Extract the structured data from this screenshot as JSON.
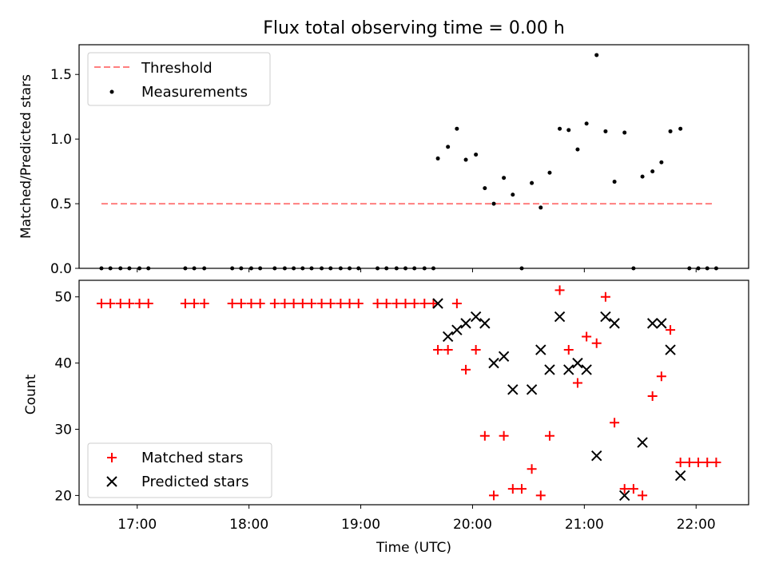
{
  "chart_data": [
    {
      "type": "scatter",
      "title": "Flux total observing time = 0.00 h",
      "xlabel": "",
      "ylabel": "Matched/Predicted stars",
      "x_unit": "time (h UTC)",
      "xlim": [
        16.48,
        22.47
      ],
      "ylim": [
        0.0,
        1.73
      ],
      "yticks": [
        0.0,
        0.5,
        1.0,
        1.5
      ],
      "ytick_labels": [
        "0.0",
        "0.5",
        "1.0",
        "1.5"
      ],
      "grid": false,
      "legend_placement": "upper-left",
      "threshold": {
        "name": "Threshold",
        "value": 0.5,
        "x_range": [
          16.68,
          22.15
        ],
        "color": "#ff7f7f"
      },
      "series": [
        {
          "name": "Measurements",
          "color": "#000000",
          "marker": "dot",
          "points": [
            [
              16.68,
              0
            ],
            [
              16.76,
              0
            ],
            [
              16.85,
              0
            ],
            [
              16.93,
              0
            ],
            [
              17.02,
              0
            ],
            [
              17.1,
              0
            ],
            [
              17.43,
              0
            ],
            [
              17.51,
              0
            ],
            [
              17.6,
              0
            ],
            [
              17.85,
              0
            ],
            [
              17.93,
              0
            ],
            [
              18.02,
              0
            ],
            [
              18.1,
              0
            ],
            [
              18.23,
              0
            ],
            [
              18.32,
              0
            ],
            [
              18.4,
              0
            ],
            [
              18.48,
              0
            ],
            [
              18.56,
              0
            ],
            [
              18.65,
              0
            ],
            [
              18.73,
              0
            ],
            [
              18.82,
              0
            ],
            [
              18.9,
              0
            ],
            [
              18.98,
              0
            ],
            [
              19.15,
              0
            ],
            [
              19.23,
              0
            ],
            [
              19.32,
              0
            ],
            [
              19.4,
              0
            ],
            [
              19.48,
              0
            ],
            [
              19.57,
              0
            ],
            [
              19.65,
              0
            ],
            [
              19.69,
              0.85
            ],
            [
              19.78,
              0.94
            ],
            [
              19.86,
              1.08
            ],
            [
              19.94,
              0.84
            ],
            [
              20.03,
              0.88
            ],
            [
              20.11,
              0.62
            ],
            [
              20.19,
              0.5
            ],
            [
              20.28,
              0.7
            ],
            [
              20.36,
              0.57
            ],
            [
              20.44,
              0.0
            ],
            [
              20.53,
              0.66
            ],
            [
              20.61,
              0.47
            ],
            [
              20.69,
              0.74
            ],
            [
              20.78,
              1.08
            ],
            [
              20.86,
              1.07
            ],
            [
              20.94,
              0.92
            ],
            [
              21.02,
              1.12
            ],
            [
              21.11,
              1.65
            ],
            [
              21.19,
              1.06
            ],
            [
              21.27,
              0.67
            ],
            [
              21.36,
              1.05
            ],
            [
              21.44,
              0.0
            ],
            [
              21.52,
              0.71
            ],
            [
              21.61,
              0.75
            ],
            [
              21.69,
              0.82
            ],
            [
              21.77,
              1.06
            ],
            [
              21.86,
              1.08
            ],
            [
              21.94,
              0.0
            ],
            [
              22.02,
              0.0
            ],
            [
              22.1,
              0.0
            ],
            [
              22.18,
              0.0
            ]
          ]
        }
      ]
    },
    {
      "type": "scatter",
      "title": "",
      "xlabel": "Time (UTC)",
      "ylabel": "Count",
      "x_unit": "time (h UTC)",
      "xlim": [
        16.48,
        22.47
      ],
      "ylim": [
        18.6,
        52.5
      ],
      "xticks": [
        17,
        18,
        19,
        20,
        21,
        22
      ],
      "xtick_labels": [
        "17:00",
        "18:00",
        "19:00",
        "20:00",
        "21:00",
        "22:00"
      ],
      "yticks": [
        20,
        30,
        40,
        50
      ],
      "ytick_labels": [
        "20",
        "30",
        "40",
        "50"
      ],
      "grid": false,
      "legend_placement": "lower-left",
      "series": [
        {
          "name": "Matched stars",
          "color": "#ff0000",
          "marker": "plus",
          "points": [
            [
              16.68,
              49
            ],
            [
              16.76,
              49
            ],
            [
              16.85,
              49
            ],
            [
              16.93,
              49
            ],
            [
              17.02,
              49
            ],
            [
              17.1,
              49
            ],
            [
              17.43,
              49
            ],
            [
              17.51,
              49
            ],
            [
              17.6,
              49
            ],
            [
              17.85,
              49
            ],
            [
              17.93,
              49
            ],
            [
              18.02,
              49
            ],
            [
              18.1,
              49
            ],
            [
              18.23,
              49
            ],
            [
              18.32,
              49
            ],
            [
              18.4,
              49
            ],
            [
              18.48,
              49
            ],
            [
              18.56,
              49
            ],
            [
              18.65,
              49
            ],
            [
              18.73,
              49
            ],
            [
              18.82,
              49
            ],
            [
              18.9,
              49
            ],
            [
              18.98,
              49
            ],
            [
              19.15,
              49
            ],
            [
              19.23,
              49
            ],
            [
              19.32,
              49
            ],
            [
              19.4,
              49
            ],
            [
              19.48,
              49
            ],
            [
              19.57,
              49
            ],
            [
              19.65,
              49
            ],
            [
              19.69,
              42
            ],
            [
              19.78,
              42
            ],
            [
              19.86,
              49
            ],
            [
              19.94,
              39
            ],
            [
              20.03,
              42
            ],
            [
              20.11,
              29
            ],
            [
              20.19,
              20
            ],
            [
              20.28,
              29
            ],
            [
              20.36,
              21
            ],
            [
              20.44,
              21
            ],
            [
              20.53,
              24
            ],
            [
              20.61,
              20
            ],
            [
              20.69,
              29
            ],
            [
              20.78,
              51
            ],
            [
              20.86,
              42
            ],
            [
              20.94,
              37
            ],
            [
              21.02,
              44
            ],
            [
              21.11,
              43
            ],
            [
              21.19,
              50
            ],
            [
              21.27,
              31
            ],
            [
              21.36,
              21
            ],
            [
              21.44,
              21
            ],
            [
              21.52,
              20
            ],
            [
              21.61,
              35
            ],
            [
              21.69,
              38
            ],
            [
              21.77,
              45
            ],
            [
              21.86,
              25
            ],
            [
              21.94,
              25
            ],
            [
              22.02,
              25
            ],
            [
              22.1,
              25
            ],
            [
              22.18,
              25
            ]
          ]
        },
        {
          "name": "Predicted stars",
          "color": "#000000",
          "marker": "x",
          "points": [
            [
              19.69,
              49
            ],
            [
              19.78,
              44
            ],
            [
              19.86,
              45
            ],
            [
              19.94,
              46
            ],
            [
              20.03,
              47
            ],
            [
              20.11,
              46
            ],
            [
              20.19,
              40
            ],
            [
              20.28,
              41
            ],
            [
              20.36,
              36
            ],
            [
              20.53,
              36
            ],
            [
              20.61,
              42
            ],
            [
              20.69,
              39
            ],
            [
              20.78,
              47
            ],
            [
              20.86,
              39
            ],
            [
              20.94,
              40
            ],
            [
              21.02,
              39
            ],
            [
              21.11,
              26
            ],
            [
              21.19,
              47
            ],
            [
              21.27,
              46
            ],
            [
              21.36,
              20
            ],
            [
              21.52,
              28
            ],
            [
              21.61,
              46
            ],
            [
              21.69,
              46
            ],
            [
              21.77,
              42
            ],
            [
              21.86,
              23
            ]
          ]
        }
      ]
    }
  ]
}
